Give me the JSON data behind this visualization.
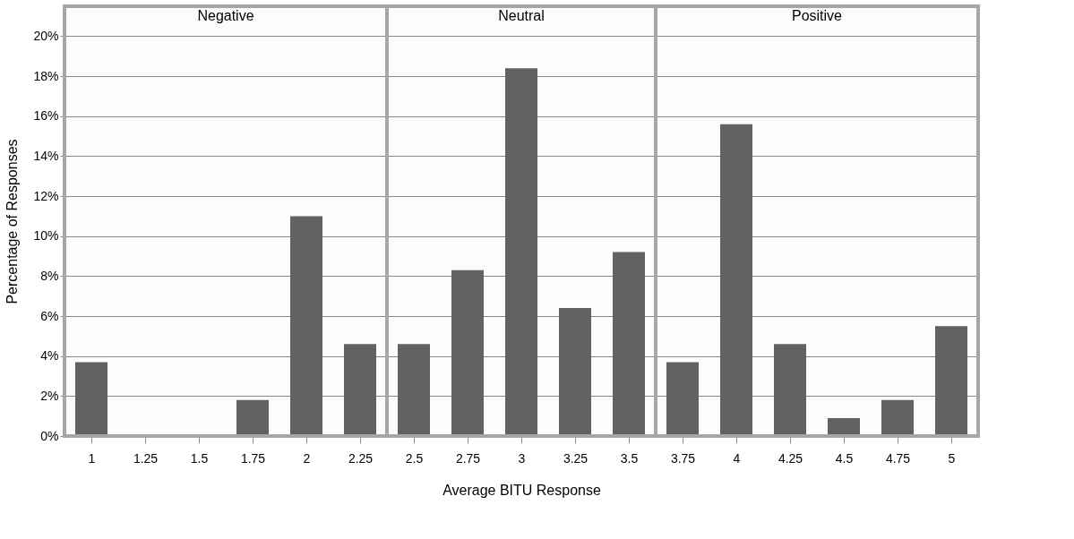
{
  "chart_data": {
    "type": "bar",
    "xlabel": "Average BITU Response",
    "ylabel": "Percentage of Responses",
    "x": [
      1,
      1.25,
      1.5,
      1.75,
      2,
      2.25,
      2.5,
      2.75,
      3,
      3.25,
      3.5,
      3.75,
      4,
      4.25,
      4.5,
      4.75,
      5
    ],
    "values": [
      3.7,
      0,
      0,
      1.8,
      11.0,
      4.6,
      4.6,
      8.3,
      18.4,
      6.4,
      9.2,
      3.7,
      15.6,
      4.6,
      0.9,
      1.8,
      5.5
    ],
    "color": "#5f5f5f",
    "xlim": [
      0.875,
      5.125
    ],
    "xticks": [
      1,
      1.25,
      1.5,
      1.75,
      2,
      2.25,
      2.5,
      2.75,
      3,
      3.25,
      3.5,
      3.75,
      4,
      4.25,
      4.5,
      4.75,
      5
    ],
    "ylim": [
      0,
      21.5
    ],
    "yticks": [
      {
        "value": 0,
        "label": "0%"
      },
      {
        "value": 2,
        "label": "2%"
      },
      {
        "value": 4,
        "label": "4%"
      },
      {
        "value": 6,
        "label": "6%"
      },
      {
        "value": 8,
        "label": "8%"
      },
      {
        "value": 10,
        "label": "10%"
      },
      {
        "value": 12,
        "label": "12%"
      },
      {
        "value": 14,
        "label": "14%"
      },
      {
        "value": 16,
        "label": "16%"
      },
      {
        "value": 18,
        "label": "18%"
      },
      {
        "value": 20,
        "label": "20%"
      }
    ],
    "grid": "y",
    "bands": [
      {
        "axis": "x",
        "from": 0.875,
        "to": 2.375,
        "label": "Negative",
        "color": "#a6a6a6"
      },
      {
        "axis": "x",
        "from": 2.375,
        "to": 3.625,
        "label": "Neutral",
        "color": "#a6a6a6"
      },
      {
        "axis": "x",
        "from": 3.625,
        "to": 5.125,
        "label": "Positive",
        "color": "#a6a6a6"
      }
    ]
  }
}
